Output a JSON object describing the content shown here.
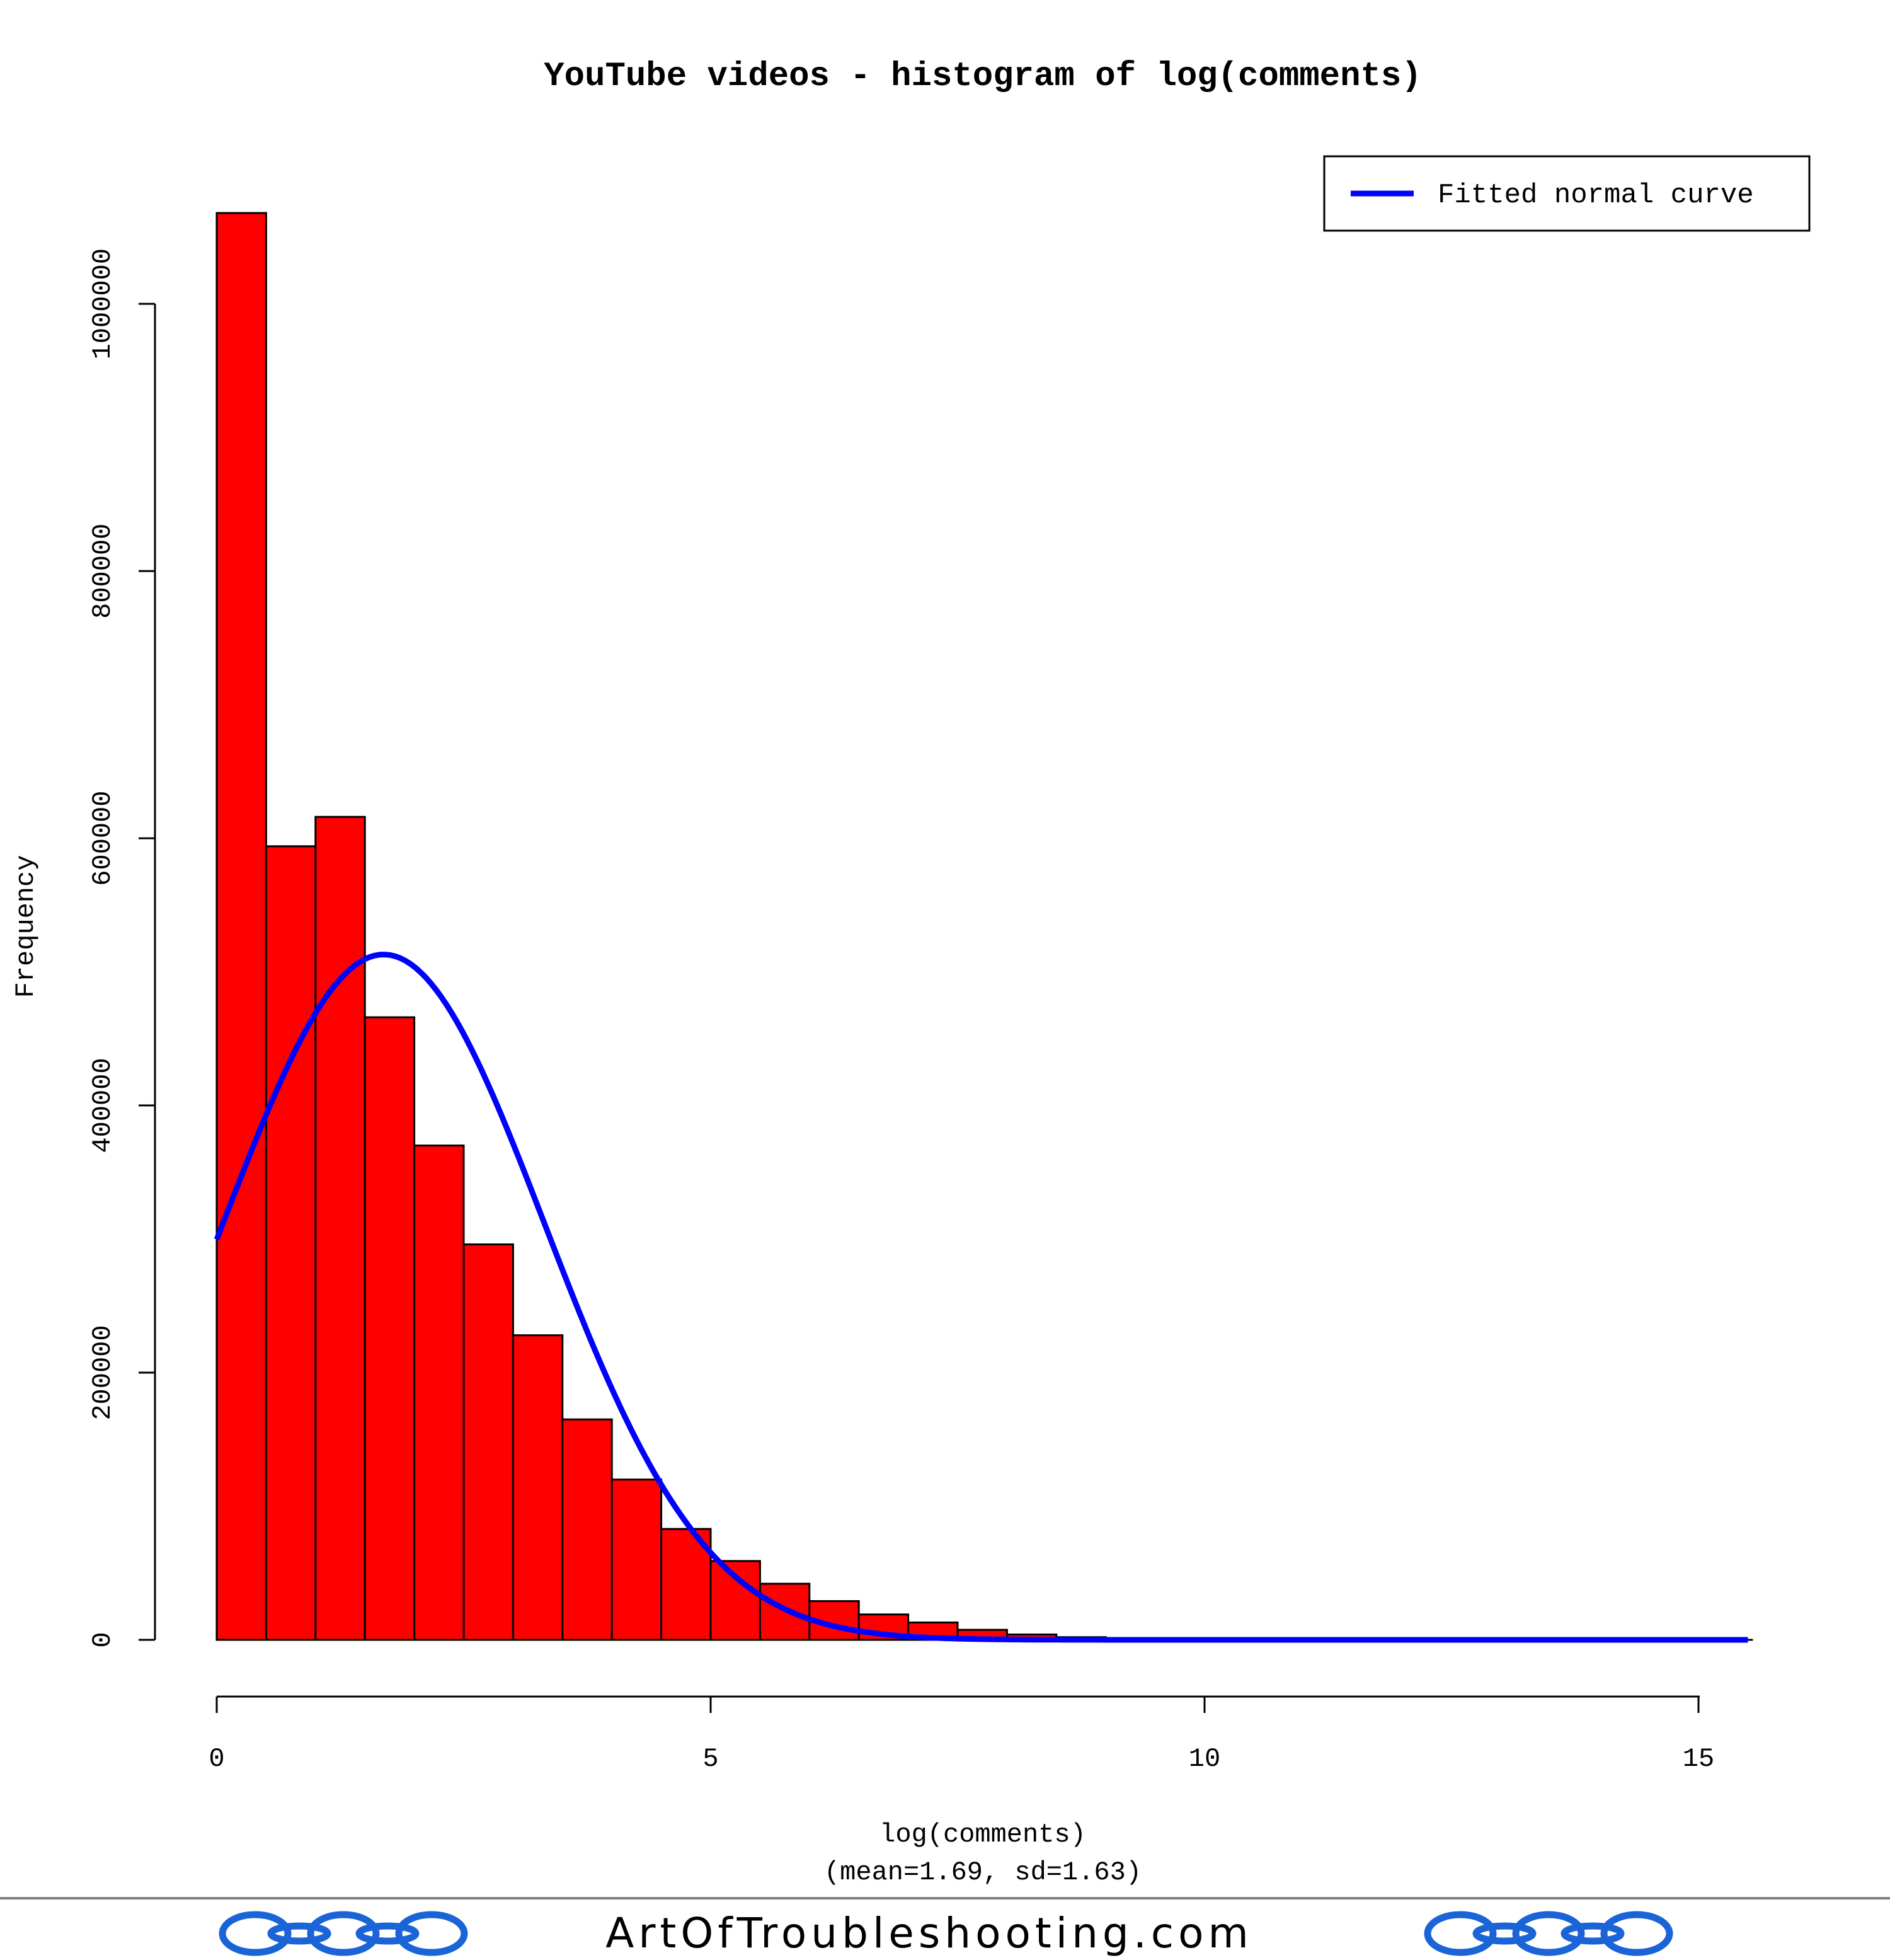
{
  "chart_data": {
    "type": "bar",
    "title": "YouTube videos - histogram of log(comments)",
    "xlabel": "log(comments)",
    "subtitle": "(mean=1.69, sd=1.63)",
    "ylabel": "Frequency",
    "bin_width": 0.5,
    "bin_starts": [
      0,
      0.5,
      1,
      1.5,
      2,
      2.5,
      3,
      3.5,
      4,
      4.5,
      5,
      5.5,
      6,
      6.5,
      7,
      7.5,
      8,
      8.5,
      9
    ],
    "values": [
      1068000,
      594000,
      616000,
      466000,
      370000,
      296000,
      228000,
      165000,
      120000,
      83000,
      59000,
      42000,
      29000,
      19000,
      13000,
      7500,
      4000,
      2000,
      800
    ],
    "xlim": [
      0,
      15.5
    ],
    "ylim": [
      0,
      1068000
    ],
    "x_ticks": [
      0,
      5,
      10,
      15
    ],
    "x_tick_labels": [
      "0",
      "5",
      "10",
      "15"
    ],
    "y_ticks": [
      0,
      200000,
      400000,
      600000,
      800000,
      1000000
    ],
    "y_tick_labels": [
      "0",
      "200000",
      "400000",
      "600000",
      "800000",
      "1000000"
    ],
    "bar_color": "#ff0000",
    "curve": {
      "name": "Fitted normal curve",
      "mean": 1.69,
      "sd": 1.63,
      "peak": 513000,
      "color": "#0000ff"
    },
    "legend": {
      "position": "top-right",
      "label": "Fitted normal curve"
    },
    "grid": false
  },
  "footer": {
    "site": "ArtOfTroubleshooting.com",
    "logo_color": "#1a64d8",
    "rule_color": "#808080"
  }
}
